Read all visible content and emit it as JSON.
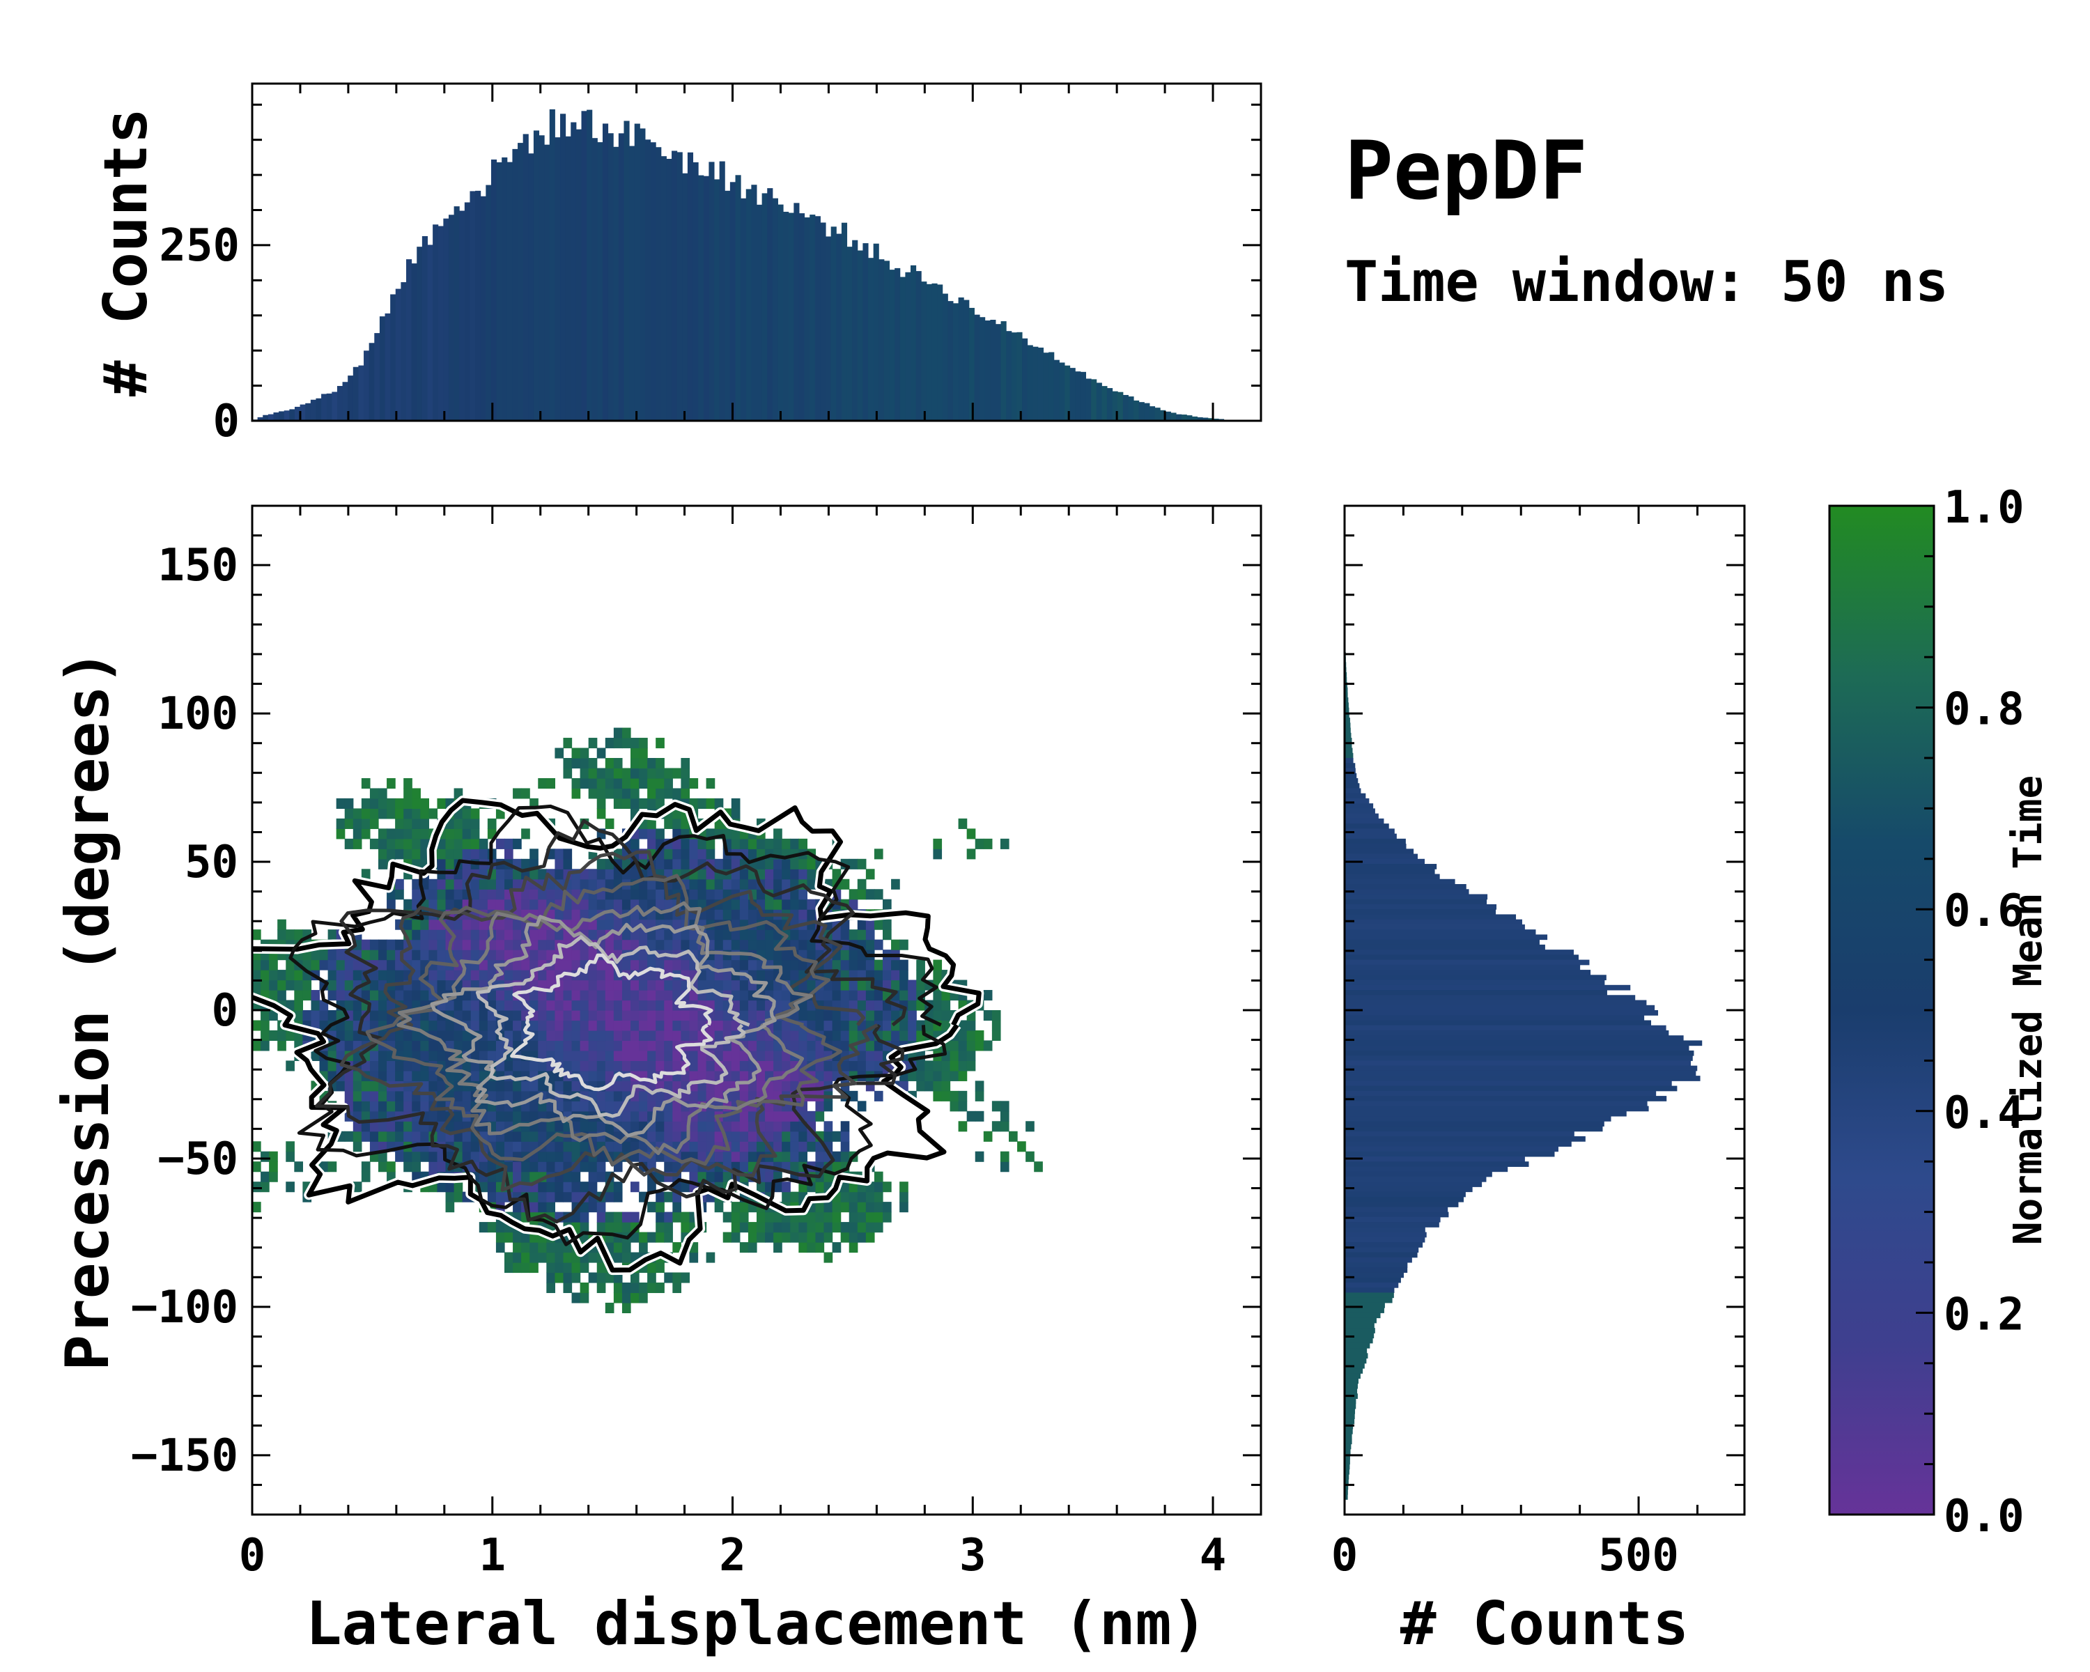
{
  "chart_data": [
    {
      "type": "heatmap",
      "name": "joint-distribution",
      "xlabel": "Lateral displacement (nm)",
      "ylabel": "Precession (degrees)",
      "xlim": [
        0,
        4.2
      ],
      "ylim": [
        -170,
        170
      ],
      "xticks": [
        0,
        1,
        2,
        3,
        4
      ],
      "xtick_labels": [
        "0",
        "1",
        "2",
        "3",
        "4"
      ],
      "yticks": [
        -150,
        -100,
        -50,
        0,
        50,
        100,
        150
      ],
      "ytick_labels": [
        "−150",
        "−100",
        "−50",
        "0",
        "50",
        "100",
        "150"
      ],
      "bin_size_x": 0.035,
      "bin_size_y": 3.4,
      "color_value": "Normalized Mean Time",
      "contours": true,
      "density_peak": [
        1.5,
        -5
      ]
    },
    {
      "type": "bar",
      "name": "marginal-x",
      "ylabel": "# Counts",
      "xlim": [
        0,
        4.2
      ],
      "ylim": [
        0,
        480
      ],
      "yticks": [
        0,
        250
      ],
      "ytick_labels": [
        "0",
        "250"
      ],
      "x": [
        0.05,
        0.15,
        0.25,
        0.35,
        0.45,
        0.55,
        0.65,
        0.75,
        0.85,
        0.95,
        1.05,
        1.15,
        1.25,
        1.35,
        1.45,
        1.55,
        1.65,
        1.75,
        1.85,
        1.95,
        2.05,
        2.15,
        2.25,
        2.35,
        2.45,
        2.55,
        2.65,
        2.75,
        2.85,
        2.95,
        3.05,
        3.15,
        3.25,
        3.35,
        3.45,
        3.55,
        3.65,
        3.75,
        3.85,
        3.95,
        4.05
      ],
      "values": [
        8,
        15,
        28,
        45,
        80,
        150,
        220,
        270,
        310,
        330,
        370,
        400,
        420,
        425,
        420,
        405,
        405,
        380,
        365,
        350,
        335,
        320,
        300,
        285,
        270,
        250,
        225,
        210,
        195,
        170,
        150,
        130,
        110,
        90,
        70,
        50,
        35,
        20,
        10,
        5,
        2
      ]
    },
    {
      "type": "bar",
      "orientation": "horizontal",
      "name": "marginal-y",
      "xlabel": "# Counts",
      "xlim": [
        0,
        680
      ],
      "ylim": [
        -170,
        170
      ],
      "xticks": [
        0,
        500
      ],
      "xtick_labels": [
        "0",
        "500"
      ],
      "y": [
        -165,
        -155,
        -145,
        -135,
        -125,
        -115,
        -105,
        -95,
        -85,
        -75,
        -65,
        -55,
        -45,
        -35,
        -25,
        -15,
        -5,
        5,
        15,
        25,
        35,
        45,
        55,
        65,
        75,
        85,
        95,
        105,
        115,
        125
      ],
      "values": [
        5,
        8,
        12,
        18,
        25,
        40,
        55,
        85,
        110,
        140,
        185,
        260,
        380,
        480,
        580,
        600,
        550,
        480,
        410,
        330,
        260,
        170,
        110,
        60,
        25,
        15,
        10,
        6,
        3,
        1
      ]
    }
  ],
  "title": "PepDF",
  "subtitle": "Time window: 50 ns",
  "colorbar": {
    "label": "Normalized Mean Time",
    "range": [
      0.0,
      1.0
    ],
    "ticks": [
      "0.0",
      "0.2",
      "0.4",
      "0.6",
      "0.8",
      "1.0"
    ],
    "stops": [
      "#663399",
      "#3f3f8f",
      "#2e4a8c",
      "#1a3d6d",
      "#164a6a",
      "#1d6b55",
      "#228b22"
    ]
  }
}
